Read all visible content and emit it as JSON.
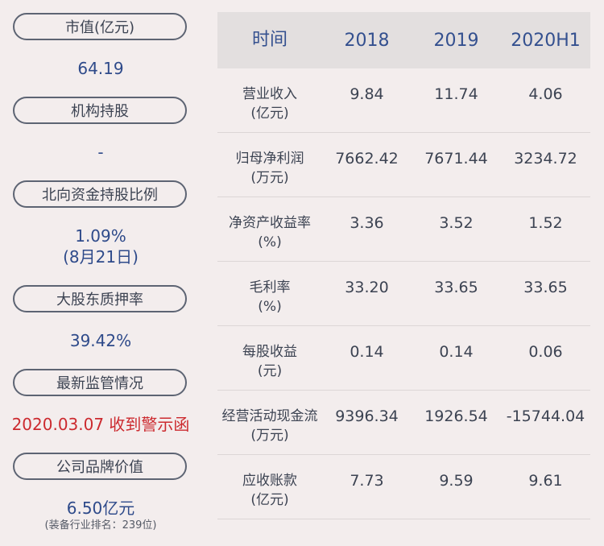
{
  "left": {
    "market_cap_label": "市值(亿元)",
    "market_cap_value": "64.19",
    "institution_label": "机构持股",
    "institution_value": "-",
    "northbound_label": "北向资金持股比例",
    "northbound_value": "1.09%",
    "northbound_date": "(8月21日)",
    "pledge_label": "大股东质押率",
    "pledge_value": "39.42%",
    "regulation_label": "最新监管情况",
    "regulation_value": "2020.03.07 收到警示函",
    "brand_label": "公司品牌价值",
    "brand_value": "6.50亿元",
    "brand_rank": "(装备行业排名：239位)"
  },
  "table": {
    "headers": [
      "时间",
      "2018",
      "2019",
      "2020H1"
    ],
    "rows": [
      {
        "label": "营业收入",
        "unit": "(亿元)",
        "values": [
          "9.84",
          "11.74",
          "4.06"
        ]
      },
      {
        "label": "归母净利润",
        "unit": "(万元)",
        "values": [
          "7662.42",
          "7671.44",
          "3234.72"
        ]
      },
      {
        "label": "净资产收益率",
        "unit": "(%)",
        "values": [
          "3.36",
          "3.52",
          "1.52"
        ]
      },
      {
        "label": "毛利率",
        "unit": "(%)",
        "values": [
          "33.20",
          "33.65",
          "33.65"
        ]
      },
      {
        "label": "每股收益",
        "unit": "(元)",
        "values": [
          "0.14",
          "0.14",
          "0.06"
        ]
      },
      {
        "label": "经营活动现金流",
        "unit": "(万元)",
        "values": [
          "9396.34",
          "1926.54",
          "-15744.04"
        ]
      },
      {
        "label": "应收账款",
        "unit": "(亿元)",
        "values": [
          "7.73",
          "9.59",
          "9.61"
        ]
      }
    ]
  }
}
